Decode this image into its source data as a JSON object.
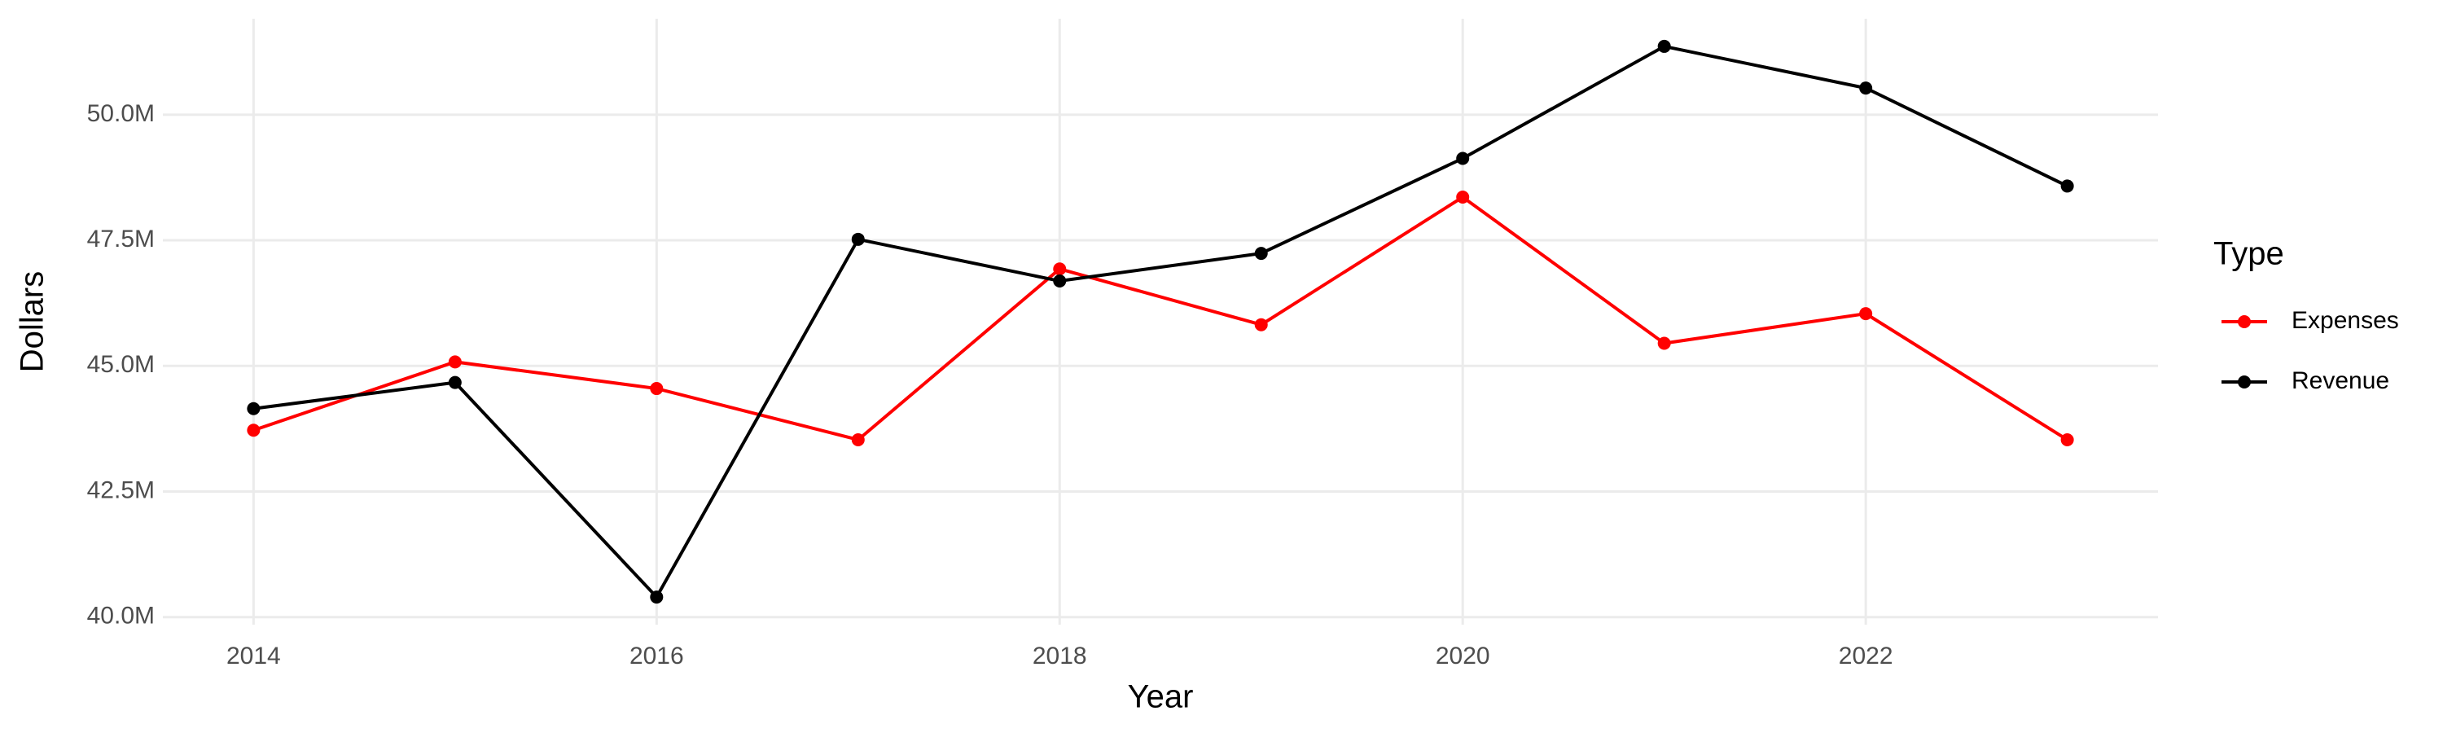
{
  "chart_data": {
    "type": "line",
    "x_label": "Year",
    "y_label": "Dollars",
    "legend_title": "Type",
    "x": [
      2014,
      2015,
      2016,
      2017,
      2018,
      2019,
      2020,
      2021,
      2022,
      2023
    ],
    "series": [
      {
        "name": "Expenses",
        "color": "#ff0000",
        "values": [
          43720000,
          45080000,
          44550000,
          43530000,
          46930000,
          45820000,
          48360000,
          45450000,
          46040000,
          43530000
        ]
      },
      {
        "name": "Revenue",
        "color": "#000000",
        "values": [
          44150000,
          44670000,
          40400000,
          47520000,
          46690000,
          47240000,
          49130000,
          51360000,
          50530000,
          48580000
        ]
      }
    ],
    "xlim": [
      2013.55,
      2023.45
    ],
    "xticks": [
      2014,
      2016,
      2018,
      2020,
      2022
    ],
    "ylim": [
      39850000,
      51910000
    ],
    "yticks": [
      {
        "value": 40000000,
        "label": "40.0M"
      },
      {
        "value": 42500000,
        "label": "42.5M"
      },
      {
        "value": 45000000,
        "label": "45.0M"
      },
      {
        "value": 47500000,
        "label": "47.5M"
      },
      {
        "value": 50000000,
        "label": "50.0M"
      }
    ],
    "grid": true,
    "legend": "right"
  }
}
